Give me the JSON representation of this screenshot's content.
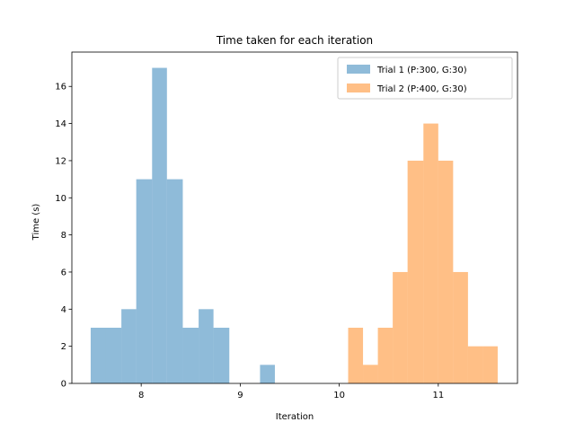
{
  "chart_data": {
    "type": "bar",
    "title": "Time taken for each iteration",
    "xlabel": "Iteration",
    "ylabel": "Time (s)",
    "xlim": [
      7.35,
      10.77
    ],
    "ylim": [
      0,
      17.85
    ],
    "xticks": [
      8,
      9,
      10,
      11
    ],
    "yticks": [
      0,
      2,
      4,
      6,
      8,
      10,
      12,
      14,
      16
    ],
    "grid": false,
    "legend_position": "top-right",
    "series": [
      {
        "name": "Trial 1 (P:300, G:30)",
        "color": "#1f77b4",
        "opacity": 0.5,
        "bins": [
          [
            7.49,
            7.64,
            3
          ],
          [
            7.64,
            7.8,
            3
          ],
          [
            7.8,
            7.95,
            4
          ],
          [
            7.95,
            8.11,
            11
          ],
          [
            8.11,
            8.26,
            17
          ],
          [
            8.26,
            8.42,
            11
          ],
          [
            8.42,
            8.58,
            3
          ],
          [
            8.58,
            8.73,
            4
          ],
          [
            8.73,
            8.89,
            3
          ],
          [
            9.2,
            9.35,
            1
          ]
        ]
      },
      {
        "name": "Trial 2 (P:400, G:30)",
        "color": "#ff7f0e",
        "opacity": 0.5,
        "bins": [
          [
            10.09,
            10.24,
            3
          ],
          [
            10.24,
            10.39,
            1
          ],
          [
            10.39,
            10.54,
            3
          ],
          [
            10.54,
            10.69,
            6
          ],
          [
            10.69,
            10.85,
            12
          ],
          [
            10.85,
            11.0,
            14
          ],
          [
            11.0,
            11.15,
            12
          ],
          [
            11.15,
            11.3,
            6
          ],
          [
            11.3,
            11.45,
            2
          ],
          [
            11.45,
            11.6,
            2
          ]
        ]
      }
    ]
  }
}
